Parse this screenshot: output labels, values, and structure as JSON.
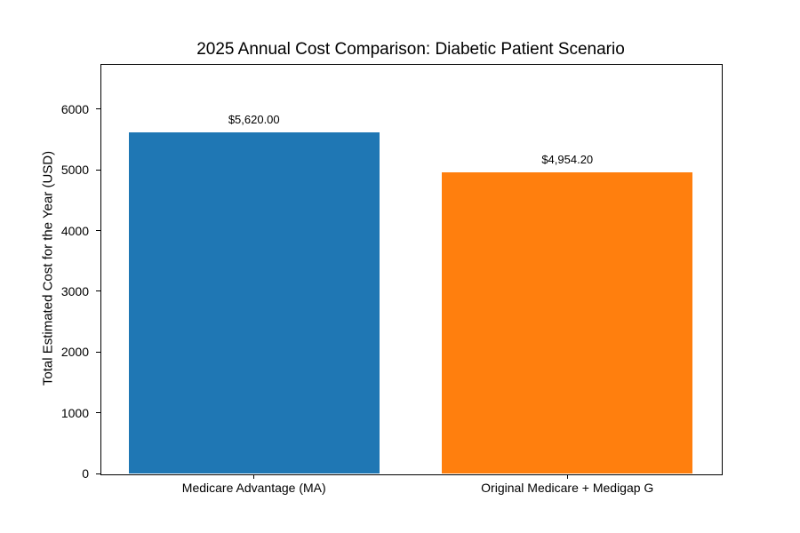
{
  "chart_data": {
    "type": "bar",
    "title": "2025 Annual Cost Comparison: Diabetic Patient Scenario",
    "xlabel": "",
    "ylabel": "Total Estimated Cost for the Year (USD)",
    "categories": [
      "Medicare Advantage (MA)",
      "Original Medicare + Medigap G"
    ],
    "values": [
      5620.0,
      4954.2
    ],
    "value_labels": [
      "$5,620.00",
      "$4,954.20"
    ],
    "bar_colors": [
      "#1f77b4",
      "#ff7f0e"
    ],
    "ylim": [
      0,
      6744
    ],
    "yticks": [
      0,
      1000,
      2000,
      3000,
      4000,
      5000,
      6000
    ],
    "bar_width_units": 0.8,
    "grid": false,
    "legend": "none",
    "frame_color": "#000000",
    "background_color": "#ffffff"
  }
}
